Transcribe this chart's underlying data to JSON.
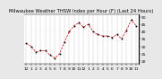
{
  "title": "Milwaukee Weather THSW Index per Hour (F) (Last 24 Hours)",
  "title_fontsize": 3.8,
  "background_color": "#e8e8e8",
  "plot_bg_color": "#ffffff",
  "line_color": "#cc0000",
  "marker_color": "#000000",
  "grid_color": "#888888",
  "x_values": [
    0,
    1,
    2,
    3,
    4,
    5,
    6,
    7,
    8,
    9,
    10,
    11,
    12,
    13,
    14,
    15,
    16,
    17,
    18,
    19,
    20,
    21,
    22,
    23
  ],
  "y_values": [
    32,
    30,
    26,
    27,
    27,
    24,
    22,
    25,
    33,
    40,
    44,
    46,
    43,
    45,
    40,
    38,
    37,
    37,
    36,
    38,
    35,
    41,
    48,
    44
  ],
  "ylim": [
    18,
    52
  ],
  "yticks": [
    20,
    25,
    30,
    35,
    40,
    45,
    50
  ],
  "ytick_labels": [
    "20",
    "25",
    "30",
    "35",
    "40",
    "45",
    "50"
  ],
  "tick_fontsize": 3.2,
  "x_tick_positions": [
    0,
    1,
    2,
    3,
    4,
    5,
    6,
    7,
    8,
    9,
    10,
    11,
    12,
    13,
    14,
    15,
    16,
    17,
    18,
    19,
    20,
    21,
    22,
    23
  ],
  "x_tick_labels": [
    "12",
    "1",
    "2",
    "3",
    "4",
    "5",
    "6",
    "7",
    "8",
    "9",
    "10",
    "11",
    "12",
    "1",
    "2",
    "3",
    "4",
    "5",
    "6",
    "7",
    "8",
    "9",
    "10",
    "11"
  ]
}
